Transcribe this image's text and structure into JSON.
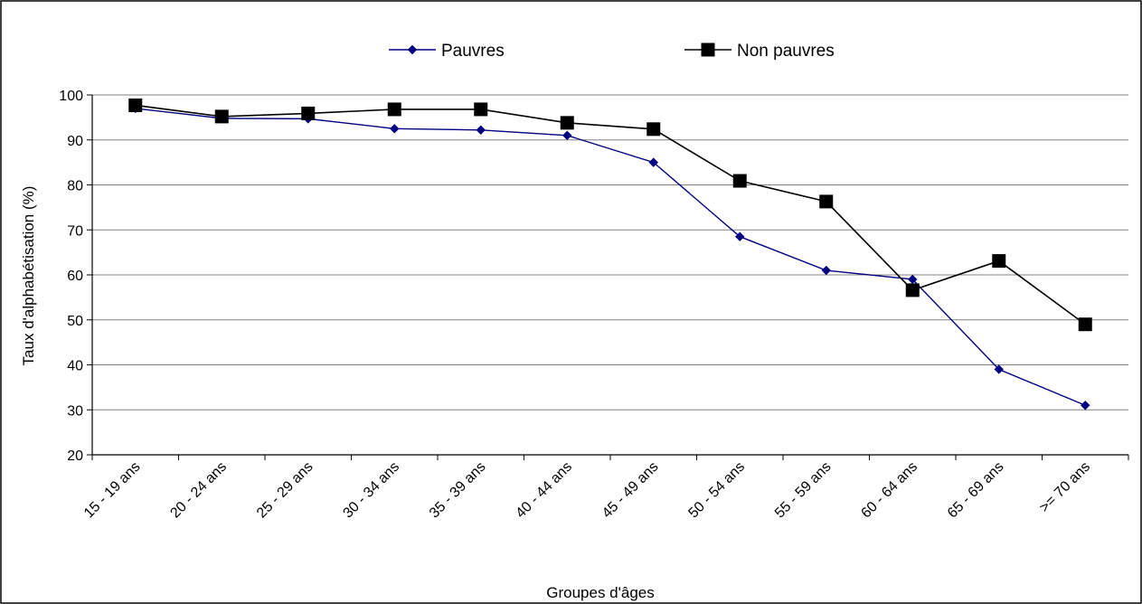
{
  "chart_data": {
    "type": "line",
    "title": "",
    "xlabel": "Groupes d'âges",
    "ylabel": "Taux d'alphabétisation (%)",
    "ylim": [
      20,
      100
    ],
    "yticks": [
      20,
      30,
      40,
      50,
      60,
      70,
      80,
      90,
      100
    ],
    "grid": true,
    "legend_position": "top",
    "categories": [
      "15 - 19 ans",
      "20 - 24 ans",
      "25 - 29 ans",
      "30 - 34 ans",
      "35 - 39 ans",
      "40 - 44 ans",
      "45 - 49 ans",
      "50 - 54 ans",
      "55 - 59 ans",
      "60 - 64 ans",
      "65 - 69 ans",
      ">= 70 ans"
    ],
    "series": [
      {
        "name": "Pauvres",
        "color": "#000080",
        "marker": "diamond",
        "values": [
          97,
          94.8,
          94.7,
          92.5,
          92.2,
          91,
          85,
          68.5,
          61,
          59,
          39,
          31
        ]
      },
      {
        "name": "Non pauvres",
        "color": "#000000",
        "marker": "square",
        "values": [
          97.7,
          95.2,
          95.9,
          96.8,
          96.8,
          93.8,
          92.4,
          80.9,
          76.3,
          56.6,
          63.1,
          49
        ]
      }
    ]
  }
}
